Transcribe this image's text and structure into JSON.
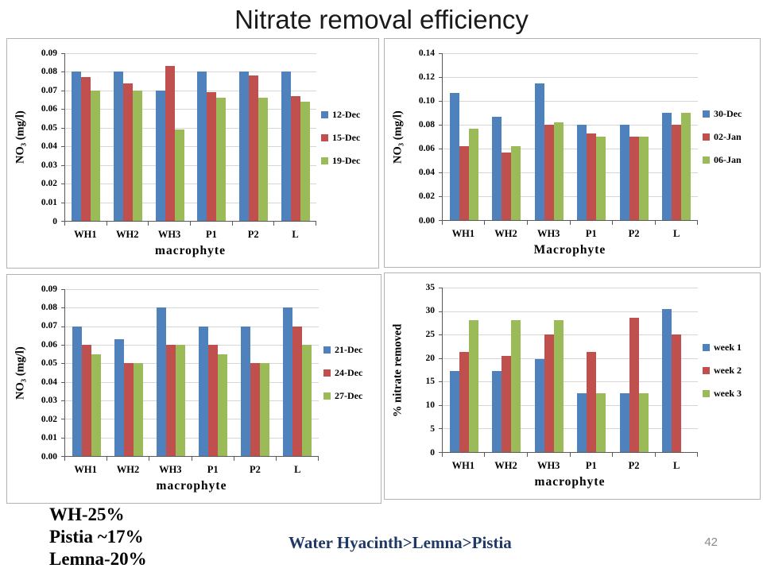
{
  "title": "Nitrate removal efficiency",
  "page_number": "42",
  "notes": [
    "WH-25%",
    "Pistia ~17%",
    "Lemna-20%"
  ],
  "conclusion": "Water Hyacinth>Lemna>Pistia",
  "colors": {
    "series_blue": "#4F81BD",
    "series_red": "#C0504D",
    "series_green": "#9BBB59",
    "gridline": "#D6D6D6",
    "axis": "#595959",
    "box_border": "#B3B3B3",
    "conclusion_text": "#1F3864",
    "page_number_text": "#8A8A8A"
  },
  "chart_data": [
    {
      "type": "bar",
      "position": "top-left",
      "ylabel": "NO₃ (mg/l)",
      "xlabel": "macrophyte",
      "categories": [
        "WH1",
        "WH2",
        "WH3",
        "P1",
        "P2",
        "L"
      ],
      "ymin": 0,
      "ymax": 0.09,
      "grid": true,
      "legend_position": "right",
      "yticks": [
        {
          "value": 0.09,
          "label": "0.09"
        },
        {
          "value": 0.08,
          "label": "0.08"
        },
        {
          "value": 0.07,
          "label": "0.07"
        },
        {
          "value": 0.06,
          "label": "0.06"
        },
        {
          "value": 0.05,
          "label": "0.05"
        },
        {
          "value": 0.04,
          "label": "0.04"
        },
        {
          "value": 0.03,
          "label": "0.03"
        },
        {
          "value": 0.02,
          "label": "0.02"
        },
        {
          "value": 0.01,
          "label": "0.01"
        },
        {
          "value": 0,
          "label": "0"
        }
      ],
      "series": [
        {
          "name": "12-Dec",
          "color": "#4F81BD",
          "values": [
            0.08,
            0.08,
            0.07,
            0.08,
            0.08,
            0.08
          ]
        },
        {
          "name": "15-Dec",
          "color": "#C0504D",
          "values": [
            0.077,
            0.074,
            0.083,
            0.069,
            0.078,
            0.067
          ]
        },
        {
          "name": "19-Dec",
          "color": "#9BBB59",
          "values": [
            0.07,
            0.07,
            0.049,
            0.066,
            0.066,
            0.064
          ]
        }
      ]
    },
    {
      "type": "bar",
      "position": "top-right",
      "ylabel": "NO₃ (mg/l)",
      "xlabel": "Macrophyte",
      "categories": [
        "WH1",
        "WH2",
        "WH3",
        "P1",
        "P2",
        "L"
      ],
      "ymin": 0,
      "ymax": 0.14,
      "grid": true,
      "legend_position": "right",
      "yticks": [
        {
          "value": 0.14,
          "label": "0.14"
        },
        {
          "value": 0.12,
          "label": "0.12"
        },
        {
          "value": 0.1,
          "label": "0.10"
        },
        {
          "value": 0.08,
          "label": "0.08"
        },
        {
          "value": 0.06,
          "label": "0.06"
        },
        {
          "value": 0.04,
          "label": "0.04"
        },
        {
          "value": 0.02,
          "label": "0.02"
        },
        {
          "value": 0,
          "label": "0.00"
        }
      ],
      "series": [
        {
          "name": "30-Dec",
          "color": "#4F81BD",
          "values": [
            0.107,
            0.087,
            0.115,
            0.08,
            0.08,
            0.09
          ]
        },
        {
          "name": "02-Jan",
          "color": "#C0504D",
          "values": [
            0.062,
            0.057,
            0.08,
            0.073,
            0.07,
            0.08
          ]
        },
        {
          "name": "06-Jan",
          "color": "#9BBB59",
          "values": [
            0.077,
            0.062,
            0.082,
            0.07,
            0.07,
            0.09
          ]
        }
      ]
    },
    {
      "type": "bar",
      "position": "bottom-left",
      "ylabel": "NO₃ (mg/l)",
      "xlabel": "macrophyte",
      "categories": [
        "WH1",
        "WH2",
        "WH3",
        "P1",
        "P2",
        "L"
      ],
      "ymin": 0,
      "ymax": 0.09,
      "grid": true,
      "legend_position": "right",
      "yticks": [
        {
          "value": 0.09,
          "label": "0.09"
        },
        {
          "value": 0.08,
          "label": "0.08"
        },
        {
          "value": 0.07,
          "label": "0.07"
        },
        {
          "value": 0.06,
          "label": "0.06"
        },
        {
          "value": 0.05,
          "label": "0.05"
        },
        {
          "value": 0.04,
          "label": "0.04"
        },
        {
          "value": 0.03,
          "label": "0.03"
        },
        {
          "value": 0.02,
          "label": "0.02"
        },
        {
          "value": 0.01,
          "label": "0.01"
        },
        {
          "value": 0,
          "label": "0.00"
        }
      ],
      "series": [
        {
          "name": "21-Dec",
          "color": "#4F81BD",
          "values": [
            0.07,
            0.063,
            0.08,
            0.07,
            0.07,
            0.08
          ]
        },
        {
          "name": "24-Dec",
          "color": "#C0504D",
          "values": [
            0.06,
            0.05,
            0.06,
            0.06,
            0.05,
            0.07
          ]
        },
        {
          "name": "27-Dec",
          "color": "#9BBB59",
          "values": [
            0.055,
            0.05,
            0.06,
            0.055,
            0.05,
            0.06
          ]
        }
      ]
    },
    {
      "type": "bar",
      "position": "bottom-right",
      "ylabel": "% nitrate removed",
      "xlabel": "macrophyte",
      "categories": [
        "WH1",
        "WH2",
        "WH3",
        "P1",
        "P2",
        "L"
      ],
      "ymin": 0,
      "ymax": 35,
      "grid": true,
      "legend_position": "right",
      "yticks": [
        {
          "value": 35,
          "label": "35"
        },
        {
          "value": 30,
          "label": "30"
        },
        {
          "value": 25,
          "label": "25"
        },
        {
          "value": 20,
          "label": "20"
        },
        {
          "value": 15,
          "label": "15"
        },
        {
          "value": 10,
          "label": "10"
        },
        {
          "value": 5,
          "label": "5"
        },
        {
          "value": 0,
          "label": "0"
        }
      ],
      "series": [
        {
          "name": "week 1",
          "color": "#4F81BD",
          "values": [
            17.3,
            17.3,
            19.8,
            12.5,
            12.5,
            30.5
          ]
        },
        {
          "name": "week 2",
          "color": "#C0504D",
          "values": [
            21.3,
            20.5,
            25,
            21.3,
            28.5,
            25
          ]
        },
        {
          "name": "week 3",
          "color": "#9BBB59",
          "values": [
            28,
            28,
            28,
            12.5,
            12.5,
            null
          ]
        }
      ]
    }
  ]
}
